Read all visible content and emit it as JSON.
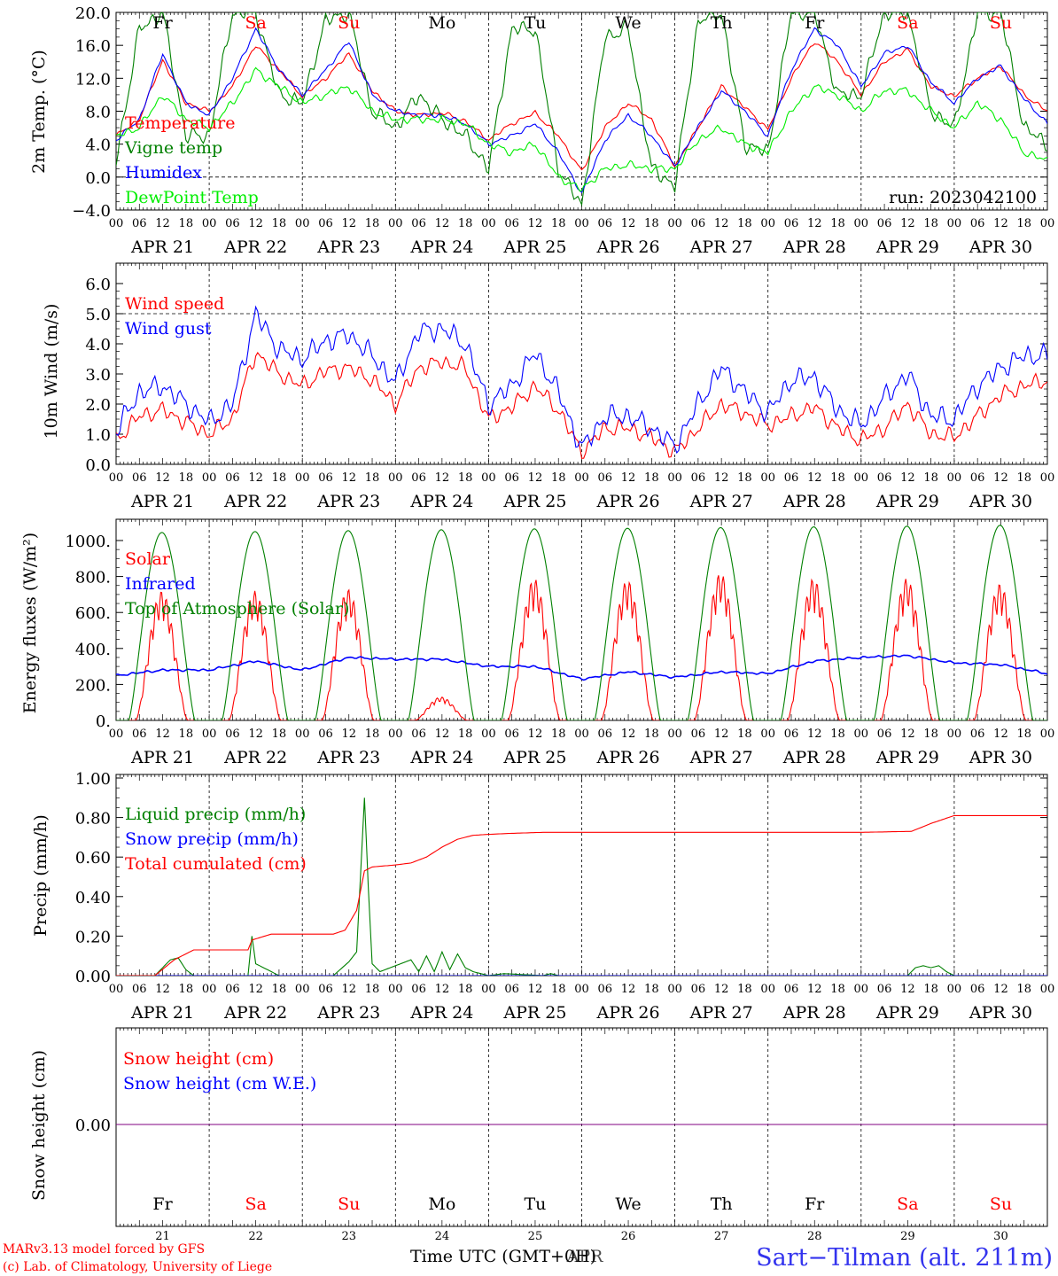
{
  "chart_data": [
    {
      "type": "line",
      "ylabel": "2m Temp. (°C)",
      "ylim": [
        -4,
        20
      ],
      "yticks": [
        "20.0",
        "16.0",
        "12.0",
        "8.0",
        "4.0",
        "0.0",
        "−4.0"
      ],
      "day_names": [
        "Fr",
        "Sa",
        "Su",
        "Mo",
        "Tu",
        "We",
        "Th",
        "Fr",
        "Sa",
        "Su"
      ],
      "annotation": "run: 2023042100",
      "x": [
        0,
        6,
        12,
        18,
        24,
        30,
        36,
        42,
        48,
        54,
        60,
        66,
        72,
        78,
        84,
        90,
        96,
        102,
        108,
        114,
        120,
        126,
        132,
        138,
        144,
        150,
        156,
        162,
        168,
        174,
        180,
        186,
        192,
        198,
        204,
        210,
        216,
        222,
        228,
        234,
        240
      ],
      "series": [
        {
          "name": "Temperature",
          "color": "#ff0000",
          "values": [
            5,
            7,
            14.2,
            9,
            8,
            11,
            16,
            13,
            9.8,
            12,
            15,
            10.5,
            8,
            7.5,
            7.8,
            6.8,
            4.5,
            6.5,
            7.8,
            5,
            0.7,
            6,
            9,
            7,
            1.3,
            6,
            11,
            8.5,
            5.8,
            12,
            16.5,
            14,
            10,
            14,
            15.5,
            11,
            9.8,
            12,
            13.5,
            10,
            8
          ]
        },
        {
          "name": "Vigne temp",
          "color": "#008000",
          "values": [
            2,
            18,
            20,
            5,
            5,
            20,
            20,
            10,
            9,
            19,
            20,
            8,
            6,
            10,
            7,
            5,
            1,
            18,
            18,
            1,
            -3.5,
            17,
            18,
            1,
            -1,
            19,
            20,
            4,
            3,
            20,
            20,
            10,
            10,
            20,
            20,
            8,
            6,
            20,
            20,
            6,
            4
          ]
        },
        {
          "name": "Humidex",
          "color": "#0000ff",
          "values": [
            4.5,
            7,
            15,
            9,
            7.5,
            12,
            18,
            13,
            10,
            13,
            16.5,
            10,
            8,
            7.5,
            7.5,
            6.5,
            4,
            5,
            6.5,
            3,
            -2,
            4.5,
            7.5,
            5,
            1.3,
            6,
            10.5,
            8,
            5,
            13,
            18,
            16,
            11,
            15,
            16,
            11.5,
            9,
            12,
            13.5,
            9.5,
            6.5
          ]
        },
        {
          "name": "DewPoint Temp",
          "color": "#00ee00",
          "values": [
            5,
            6,
            10,
            7,
            6,
            9,
            13,
            11,
            9,
            10,
            11,
            8,
            7,
            7,
            7,
            6.5,
            4,
            3,
            4,
            0,
            -1.5,
            1,
            1.5,
            1,
            1,
            4.5,
            6,
            4,
            3,
            8,
            11,
            10,
            8,
            10.5,
            10.5,
            8,
            6,
            9,
            7,
            3,
            2
          ]
        }
      ]
    },
    {
      "type": "line",
      "ylabel": "10m Wind (m/s)",
      "ylim": [
        0,
        6.5
      ],
      "yticks": [
        "6.0",
        "5.0",
        "4.0",
        "3.0",
        "2.0",
        "1.0",
        "0.0"
      ],
      "x": [
        0,
        6,
        12,
        18,
        24,
        30,
        36,
        42,
        48,
        54,
        60,
        66,
        72,
        78,
        84,
        90,
        96,
        102,
        108,
        114,
        120,
        126,
        132,
        138,
        144,
        150,
        156,
        162,
        168,
        174,
        180,
        186,
        192,
        198,
        204,
        210,
        216,
        222,
        228,
        234,
        240
      ],
      "series": [
        {
          "name": "Wind speed",
          "color": "#ff0000",
          "values": [
            0.8,
            1.6,
            1.8,
            1.4,
            1.0,
            1.5,
            3.7,
            3.0,
            2.6,
            3.1,
            3.2,
            2.8,
            2.0,
            3.2,
            3.4,
            3.2,
            1.5,
            1.9,
            2.6,
            1.8,
            0.4,
            1.2,
            1.2,
            0.9,
            0.4,
            1.2,
            2.0,
            1.7,
            1.3,
            1.6,
            1.9,
            1.2,
            0.8,
            1.2,
            2.0,
            1.0,
            0.9,
            1.6,
            2.3,
            2.6,
            2.8
          ]
        },
        {
          "name": "Wind gust",
          "color": "#0000ff",
          "values": [
            1.1,
            2.4,
            2.6,
            2.0,
            1.4,
            2.0,
            5.0,
            3.8,
            3.5,
            4.1,
            4.3,
            3.6,
            2.7,
            4.4,
            4.5,
            4.0,
            2.0,
            2.6,
            3.7,
            2.4,
            0.5,
            1.6,
            1.6,
            1.2,
            0.6,
            2.0,
            3.2,
            2.4,
            1.7,
            2.8,
            2.9,
            1.8,
            1.3,
            2.2,
            3.0,
            1.6,
            1.5,
            2.6,
            3.2,
            3.6,
            3.6
          ]
        }
      ]
    },
    {
      "type": "line",
      "ylabel": "Energy fluxes (W/m²)",
      "ylim": [
        0,
        1100
      ],
      "yticks": [
        "1000.",
        "800.",
        "600.",
        "400.",
        "200.",
        "0."
      ],
      "series": [
        {
          "name": "Solar",
          "color": "#ff0000",
          "daily_peak": [
            720,
            720,
            730,
            130,
            790,
            780,
            820,
            790,
            790,
            760
          ]
        },
        {
          "name": "Infrared",
          "color": "#0000ff",
          "x": [
            0,
            12,
            24,
            36,
            48,
            60,
            72,
            84,
            96,
            108,
            120,
            132,
            144,
            156,
            168,
            180,
            192,
            204,
            216,
            228,
            240
          ],
          "values": [
            250,
            280,
            280,
            330,
            280,
            350,
            340,
            340,
            300,
            300,
            230,
            270,
            240,
            270,
            260,
            330,
            350,
            360,
            320,
            310,
            260
          ]
        },
        {
          "name": "Top of Atmosphere (Solar)",
          "color": "#008000",
          "daily_peak": [
            1045,
            1050,
            1055,
            1060,
            1065,
            1068,
            1072,
            1076,
            1080,
            1085
          ]
        }
      ]
    },
    {
      "type": "line",
      "ylabel": "Precip (mm/h)",
      "ylim": [
        0,
        1.0
      ],
      "yticks": [
        "1.00",
        "0.80",
        "0.60",
        "0.40",
        "0.20",
        "0.00"
      ],
      "series": [
        {
          "name": "Liquid precip (mm/h)",
          "color": "#008000",
          "x": [
            0,
            10,
            12,
            14,
            16,
            18,
            20,
            34,
            35,
            36,
            38,
            40,
            42,
            56,
            60,
            62,
            64,
            65,
            66,
            68,
            72,
            76,
            78,
            80,
            82,
            84,
            86,
            88,
            90,
            92,
            96,
            100,
            110,
            112,
            114,
            116,
            118,
            120,
            204,
            206,
            208,
            210,
            212,
            214,
            216,
            240
          ],
          "values": [
            0,
            0,
            0.04,
            0.08,
            0.09,
            0.03,
            0,
            0,
            0.2,
            0.06,
            0.04,
            0.02,
            0,
            0,
            0.07,
            0.12,
            0.9,
            0.45,
            0.06,
            0.02,
            0.05,
            0.08,
            0.02,
            0.1,
            0.02,
            0.12,
            0.03,
            0.11,
            0.04,
            0.02,
            0,
            0.01,
            0,
            0.01,
            0,
            0,
            0,
            0,
            0,
            0.04,
            0.05,
            0.04,
            0.05,
            0.02,
            0,
            0
          ]
        },
        {
          "name": "Snow precip (mm/h)",
          "color": "#0000ff",
          "x": [
            0,
            240
          ],
          "values": [
            0,
            0
          ]
        },
        {
          "name": "Total cumulated (cm)",
          "color": "#ff0000",
          "x": [
            0,
            10,
            15,
            20,
            34,
            35,
            40,
            48,
            56,
            59,
            62,
            64,
            66,
            72,
            76,
            80,
            84,
            88,
            92,
            96,
            102,
            110,
            120,
            192,
            205,
            210,
            216,
            240
          ],
          "values": [
            0,
            0,
            0.08,
            0.13,
            0.13,
            0.18,
            0.21,
            0.21,
            0.21,
            0.23,
            0.33,
            0.53,
            0.55,
            0.56,
            0.57,
            0.6,
            0.65,
            0.69,
            0.71,
            0.715,
            0.72,
            0.725,
            0.725,
            0.725,
            0.73,
            0.77,
            0.81,
            0.81
          ]
        }
      ]
    },
    {
      "type": "line",
      "ylabel": "Snow height (cm)",
      "yticks": [
        "0.00"
      ],
      "series": [
        {
          "name": "Snow height (cm)",
          "color": "#ff0000",
          "x": [
            0,
            240
          ],
          "values": [
            0,
            0
          ]
        },
        {
          "name": "Snow height (cm W.E.)",
          "color": "#0000ff",
          "x": [
            0,
            240
          ],
          "values": [
            0,
            0
          ]
        }
      ]
    }
  ],
  "axis": {
    "hour_labels": [
      "00",
      "06",
      "12",
      "18"
    ],
    "end_hour_label": "00",
    "date_labels": [
      "APR 21",
      "APR 22",
      "APR 23",
      "APR 24",
      "APR 25",
      "APR 26",
      "APR 27",
      "APR 28",
      "APR 29",
      "APR 30"
    ],
    "day_numbers": [
      "21",
      "22",
      "23",
      "24",
      "25",
      "26",
      "27",
      "28",
      "29",
      "30"
    ],
    "weekend_indices": [
      1,
      2,
      8,
      9
    ],
    "xlabel": "Time UTC (GMT+0H)",
    "xlabel_overlay": "APR"
  },
  "footer": {
    "credit_line1": "MARv3.13 model forced by GFS",
    "credit_line2": "(c) Lab. of Climatology, University of Liege",
    "station": "Sart−Tilman (alt. 211m)"
  },
  "colors": {
    "weekday": "#000000",
    "weekend": "#ff0000",
    "station": "#3333ee",
    "credit": "#ff0000"
  }
}
